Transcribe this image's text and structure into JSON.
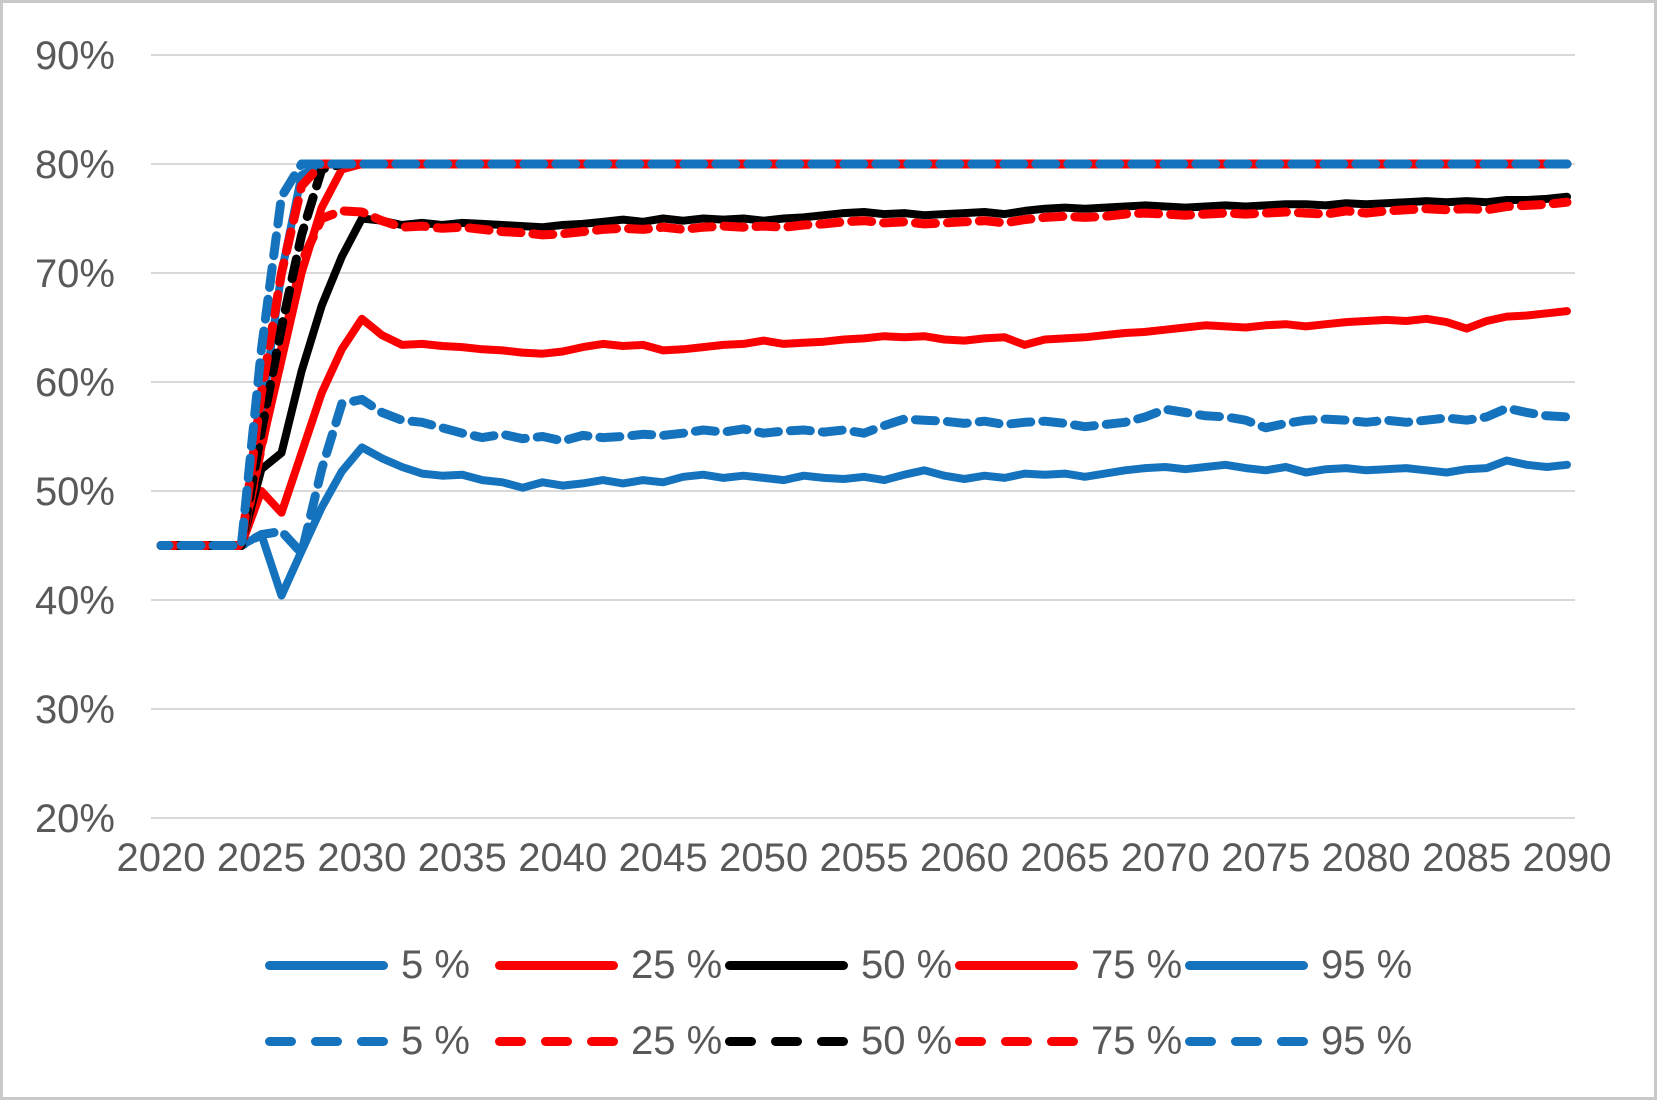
{
  "figure": {
    "background": "#ffffff",
    "frame_color": "#c9c9c9"
  },
  "chart_data": {
    "type": "line",
    "title": "",
    "xlabel": "",
    "ylabel": "",
    "x_start_year": 2020,
    "x_end_year": 2090,
    "x_step_years": 1,
    "x_tick_labels": [
      "2020",
      "2025",
      "2030",
      "2035",
      "2040",
      "2045",
      "2050",
      "2055",
      "2060",
      "2065",
      "2070",
      "2075",
      "2080",
      "2085",
      "2090"
    ],
    "y_tick_labels": [
      "90%",
      "80%",
      "70%",
      "60%",
      "50%",
      "40%",
      "30%",
      "20%"
    ],
    "y_axis_range_percent": [
      20,
      90
    ],
    "value_cap_percent": 80,
    "grid": "horizontal",
    "legend_position": "bottom-two-rows",
    "colors": {
      "blue": "#1573be",
      "red": "#fb0000",
      "black": "#000000",
      "grid": "#d9d9d9",
      "text": "#595959"
    },
    "series": [
      {
        "name": "5 %",
        "style": "solid",
        "color": "blue",
        "values": [
          45,
          45,
          45,
          45,
          45,
          46,
          40.4,
          44.5,
          48.5,
          51.8,
          54,
          53,
          52.2,
          51.6,
          51.4,
          51.5,
          51,
          50.8,
          50.3,
          50.8,
          50.5,
          50.7,
          51,
          50.7,
          51,
          50.8,
          51.3,
          51.5,
          51.2,
          51.4,
          51.2,
          51,
          51.4,
          51.2,
          51.1,
          51.3,
          51,
          51.5,
          51.9,
          51.4,
          51.1,
          51.4,
          51.2,
          51.6,
          51.5,
          51.6,
          51.3,
          51.6,
          51.9,
          52.1,
          52.2,
          52,
          52.2,
          52.4,
          52.1,
          51.9,
          52.2,
          51.7,
          52,
          52.1,
          51.9,
          52,
          52.1,
          51.9,
          51.7,
          52,
          52.1,
          52.8,
          52.4,
          52.2,
          52.4
        ]
      },
      {
        "name": "25 %",
        "style": "solid",
        "color": "red",
        "values": [
          45,
          45,
          45,
          45,
          45,
          50,
          48,
          53.5,
          59,
          63,
          65.8,
          64.3,
          63.4,
          63.5,
          63.3,
          63.2,
          63,
          62.9,
          62.7,
          62.6,
          62.8,
          63.2,
          63.5,
          63.3,
          63.4,
          62.9,
          63,
          63.2,
          63.4,
          63.5,
          63.8,
          63.5,
          63.6,
          63.7,
          63.9,
          64,
          64.2,
          64.1,
          64.2,
          63.9,
          63.8,
          64,
          64.1,
          63.4,
          63.9,
          64,
          64.1,
          64.3,
          64.5,
          64.6,
          64.8,
          65,
          65.2,
          65.1,
          65,
          65.2,
          65.3,
          65.1,
          65.3,
          65.5,
          65.6,
          65.7,
          65.6,
          65.8,
          65.5,
          64.9,
          65.6,
          66,
          66.1,
          66.3,
          66.5
        ]
      },
      {
        "name": "50 %",
        "style": "solid",
        "color": "black",
        "values": [
          45,
          45,
          45,
          45,
          45,
          52,
          53.5,
          61,
          67,
          71.5,
          75,
          74.8,
          74.4,
          74.6,
          74.4,
          74.6,
          74.5,
          74.4,
          74.3,
          74.2,
          74.4,
          74.5,
          74.7,
          74.9,
          74.7,
          75,
          74.8,
          75,
          74.9,
          75,
          74.8,
          75,
          75.1,
          75.3,
          75.5,
          75.6,
          75.4,
          75.5,
          75.3,
          75.4,
          75.5,
          75.6,
          75.4,
          75.7,
          75.9,
          76,
          75.9,
          76,
          76.1,
          76.2,
          76.1,
          76,
          76.1,
          76.2,
          76.1,
          76.2,
          76.3,
          76.3,
          76.2,
          76.4,
          76.3,
          76.4,
          76.5,
          76.6,
          76.5,
          76.6,
          76.5,
          76.7,
          76.7,
          76.8,
          77
        ]
      },
      {
        "name": "75 %",
        "style": "solid",
        "color": "red",
        "values": [
          45,
          45,
          45,
          45,
          45,
          54,
          62,
          70,
          76,
          79.5,
          80,
          80,
          80,
          80,
          80,
          80,
          80,
          80,
          80,
          80,
          80,
          80,
          80,
          80,
          80,
          80,
          80,
          80,
          80,
          80,
          80,
          80,
          80,
          80,
          80,
          80,
          80,
          80,
          80,
          80,
          80,
          80,
          80,
          80,
          80,
          80,
          80,
          80,
          80,
          80,
          80,
          80,
          80,
          80,
          80,
          80,
          80,
          80,
          80,
          80,
          80,
          80,
          80,
          80,
          80,
          80,
          80,
          80,
          80,
          80,
          80
        ]
      },
      {
        "name": "95 %",
        "style": "solid",
        "color": "blue",
        "values": [
          45,
          45,
          45,
          45,
          45,
          57,
          70,
          79,
          80,
          80,
          80,
          80,
          80,
          80,
          80,
          80,
          80,
          80,
          80,
          80,
          80,
          80,
          80,
          80,
          80,
          80,
          80,
          80,
          80,
          80,
          80,
          80,
          80,
          80,
          80,
          80,
          80,
          80,
          80,
          80,
          80,
          80,
          80,
          80,
          80,
          80,
          80,
          80,
          80,
          80,
          80,
          80,
          80,
          80,
          80,
          80,
          80,
          80,
          80,
          80,
          80,
          80,
          80,
          80,
          80,
          80,
          80,
          80,
          80,
          80,
          80
        ]
      },
      {
        "name": "5 %",
        "style": "dashed",
        "color": "blue",
        "values": [
          45,
          45,
          45,
          45,
          45,
          46,
          46.3,
          44.3,
          52,
          58,
          58.4,
          57.2,
          56.5,
          56.3,
          55.8,
          55.3,
          54.9,
          55.2,
          54.8,
          55,
          54.6,
          55.1,
          54.9,
          55,
          55.2,
          55.1,
          55.3,
          55.6,
          55.4,
          55.7,
          55.3,
          55.5,
          55.6,
          55.4,
          55.6,
          55.3,
          56,
          56.6,
          56.5,
          56.4,
          56.2,
          56.4,
          56.1,
          56.3,
          56.4,
          56.2,
          55.9,
          56.1,
          56.3,
          56.8,
          57.5,
          57.2,
          56.9,
          56.8,
          56.5,
          55.8,
          56.2,
          56.5,
          56.6,
          56.5,
          56.3,
          56.5,
          56.3,
          56.5,
          56.7,
          56.5,
          56.8,
          57.6,
          57.2,
          56.9,
          56.8
        ]
      },
      {
        "name": "25 %",
        "style": "dashed",
        "color": "red",
        "values": [
          45,
          45,
          45,
          45,
          45,
          54,
          63,
          71,
          75,
          75.7,
          75.6,
          74.8,
          74.2,
          74.3,
          74.1,
          74.2,
          74,
          73.8,
          73.7,
          73.5,
          73.6,
          73.8,
          74,
          74.1,
          74,
          74.2,
          74,
          74.2,
          74.3,
          74.2,
          74.3,
          74.2,
          74.4,
          74.5,
          74.7,
          74.8,
          74.6,
          74.7,
          74.5,
          74.6,
          74.7,
          74.8,
          74.6,
          74.9,
          75.1,
          75.2,
          75.1,
          75.2,
          75.4,
          75.5,
          75.4,
          75.3,
          75.4,
          75.5,
          75.4,
          75.5,
          75.6,
          75.5,
          75.4,
          75.7,
          75.5,
          75.7,
          75.8,
          75.9,
          75.8,
          75.9,
          75.8,
          76.1,
          76.2,
          76.3,
          76.5
        ]
      },
      {
        "name": "50 %",
        "style": "dashed",
        "color": "black",
        "values": [
          45,
          45,
          45,
          45,
          45,
          55.5,
          65,
          73.5,
          79.5,
          80,
          80,
          80,
          80,
          80,
          80,
          80,
          80,
          80,
          80,
          80,
          80,
          80,
          80,
          80,
          80,
          80,
          80,
          80,
          80,
          80,
          80,
          80,
          80,
          80,
          80,
          80,
          80,
          80,
          80,
          80,
          80,
          80,
          80,
          80,
          80,
          80,
          80,
          80,
          80,
          80,
          80,
          80,
          80,
          80,
          80,
          80,
          80,
          80,
          80,
          80,
          80,
          80,
          80,
          80,
          80,
          80,
          80,
          80,
          80,
          80,
          80
        ]
      },
      {
        "name": "75 %",
        "style": "dashed",
        "color": "red",
        "values": [
          45,
          45,
          45,
          45,
          45,
          59,
          70,
          78,
          80,
          80,
          80,
          80,
          80,
          80,
          80,
          80,
          80,
          80,
          80,
          80,
          80,
          80,
          80,
          80,
          80,
          80,
          80,
          80,
          80,
          80,
          80,
          80,
          80,
          80,
          80,
          80,
          80,
          80,
          80,
          80,
          80,
          80,
          80,
          80,
          80,
          80,
          80,
          80,
          80,
          80,
          80,
          80,
          80,
          80,
          80,
          80,
          80,
          80,
          80,
          80,
          80,
          80,
          80,
          80,
          80,
          80,
          80,
          80,
          80,
          80,
          80
        ]
      },
      {
        "name": "95 %",
        "style": "dashed",
        "color": "blue",
        "values": [
          45,
          45,
          45,
          45,
          45,
          63,
          77,
          80,
          80,
          80,
          80,
          80,
          80,
          80,
          80,
          80,
          80,
          80,
          80,
          80,
          80,
          80,
          80,
          80,
          80,
          80,
          80,
          80,
          80,
          80,
          80,
          80,
          80,
          80,
          80,
          80,
          80,
          80,
          80,
          80,
          80,
          80,
          80,
          80,
          80,
          80,
          80,
          80,
          80,
          80,
          80,
          80,
          80,
          80,
          80,
          80,
          80,
          80,
          80,
          80,
          80,
          80,
          80,
          80,
          80,
          80,
          80,
          80,
          80,
          80,
          80
        ]
      }
    ]
  }
}
